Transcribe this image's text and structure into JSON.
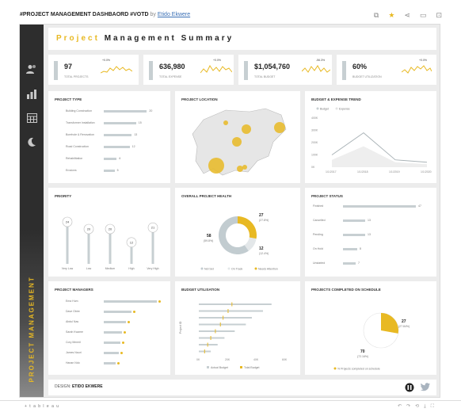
{
  "viz": {
    "title": "#PROJECT MANAGEMENT DASHBAORD #VOTD",
    "by": "by",
    "author": "Etido Ekwere"
  },
  "toolbar_icons": [
    "copy-icon",
    "star-icon",
    "share-icon",
    "comment-icon",
    "present-icon"
  ],
  "side_icons": [
    "users-icon",
    "bar-chart-icon",
    "calendar-icon",
    "moon-icon"
  ],
  "side_text": "PROJECT MANAGEMENT",
  "dash": {
    "title_a": "Project",
    "title_b": "Management Summary"
  },
  "kpis": [
    {
      "value": "97",
      "label": "TOTAL PROJECTS",
      "pct": "+0.0%"
    },
    {
      "value": "636,980",
      "label": "TOTAL EXPENSE",
      "pct": "+0.0%"
    },
    {
      "value": "$1,054,760",
      "label": "TOTAL BUDGET",
      "pct": "-56.3%"
    },
    {
      "value": "60%",
      "label": "BUDGET UTILIZATION",
      "pct": "+0.0%"
    }
  ],
  "project_type": {
    "title": "PROJECT TYPE",
    "rows": [
      {
        "label": "Building Construction",
        "value": "20",
        "fill": 0.8
      },
      {
        "label": "Transformer Installation",
        "value": "15",
        "fill": 0.6
      },
      {
        "label": "Borehole & Renovation",
        "value": "13",
        "fill": 0.52
      },
      {
        "label": "Road Construction",
        "value": "12",
        "fill": 0.48
      },
      {
        "label": "Rehabilitation",
        "value": "6",
        "fill": 0.24
      },
      {
        "label": "Erosions",
        "value": "5",
        "fill": 0.2
      }
    ]
  },
  "location": {
    "title": "PROJECT LOCATION"
  },
  "trend": {
    "title": "BUDGET & EXPENSE TREND",
    "legend": [
      "Budget",
      "Expense"
    ],
    "yticks": [
      "400K",
      "300K",
      "200K",
      "100K",
      "0K"
    ],
    "xticks": [
      "1/1/2017",
      "1/1/2018",
      "1/1/2019",
      "1/1/2020"
    ],
    "budget": [
      100,
      280,
      60,
      40
    ],
    "expense": [
      60,
      170,
      40,
      25
    ]
  },
  "priority": {
    "title": "PRIORITY",
    "items": [
      {
        "label": "Very Low",
        "value": "24",
        "fill": 0.85
      },
      {
        "label": "Low",
        "value": "20",
        "fill": 0.7
      },
      {
        "label": "Medium",
        "value": "20",
        "fill": 0.7
      },
      {
        "label": "High",
        "value": "12",
        "fill": 0.42
      },
      {
        "label": "Very High",
        "value": "21",
        "fill": 0.73
      }
    ]
  },
  "health": {
    "title": "OVERALL PROJECT HEALTH",
    "yellow_val": "27",
    "yellow_pct": "(27.8%)",
    "grey_val": "58",
    "grey_pct": "(59.8%)",
    "light_val": "12",
    "light_pct": "(12.4%)",
    "legend": [
      "Not Set",
      "On Track",
      "Needs Attention"
    ],
    "shares": [
      0.598,
      0.124,
      0.278
    ],
    "colors": [
      "#c2ccd0",
      "#e3e7e9",
      "#e8b923"
    ]
  },
  "status": {
    "title": "PROJECT STATUS",
    "rows": [
      {
        "label": "Finished",
        "value": "47",
        "fill": 0.92
      },
      {
        "label": "Cancelled",
        "value": "13",
        "fill": 0.28
      },
      {
        "label": "Pending",
        "value": "13",
        "fill": 0.28
      },
      {
        "label": "On Hold",
        "value": "8",
        "fill": 0.18
      },
      {
        "label": "Unstarted",
        "value": "7",
        "fill": 0.16
      }
    ]
  },
  "managers": {
    "title": "PROJECT MANAGERS",
    "rows": [
      {
        "label": "Ema Hum",
        "value": "",
        "fill": 0.95
      },
      {
        "label": "Dave Obire",
        "value": "",
        "fill": 0.5
      },
      {
        "label": "Abdul Nas",
        "value": "",
        "fill": 0.4
      },
      {
        "label": "Sarah Kwame",
        "value": "",
        "fill": 0.33
      },
      {
        "label": "Cory Mermil",
        "value": "",
        "fill": 0.3
      },
      {
        "label": "James Nauri",
        "value": "",
        "fill": 0.27
      },
      {
        "label": "Hanan Ndo",
        "value": "",
        "fill": 0.22
      }
    ]
  },
  "budget_util": {
    "title": "BUDGET UTILISATION",
    "ylabel": "Project ID",
    "xticks": [
      "0K",
      "20K",
      "40K",
      "60K"
    ],
    "legend": [
      "Actual Budget",
      "Total Budget"
    ],
    "bars": [
      0.85,
      0.75,
      0.62,
      0.55,
      0.42,
      0.3,
      0.22,
      0.14
    ]
  },
  "schedule": {
    "title": "PROJECTS COMPLETED ON SCHEDULE",
    "yellow_val": "27",
    "yellow_pct": "(27.84%)",
    "grey_val": "70",
    "grey_pct": "(72.16%)",
    "share": 0.2784,
    "legend": "% Projects completed on schedule"
  },
  "footer": {
    "design": "DESIGN:",
    "designer": "ETIDO EKWERE"
  },
  "bottom": {
    "brand": "+ t a b l e a u"
  },
  "colors": {
    "accent": "#e8b923",
    "bar": "#c7cfd2",
    "sidebar": "#2d2d2d"
  }
}
